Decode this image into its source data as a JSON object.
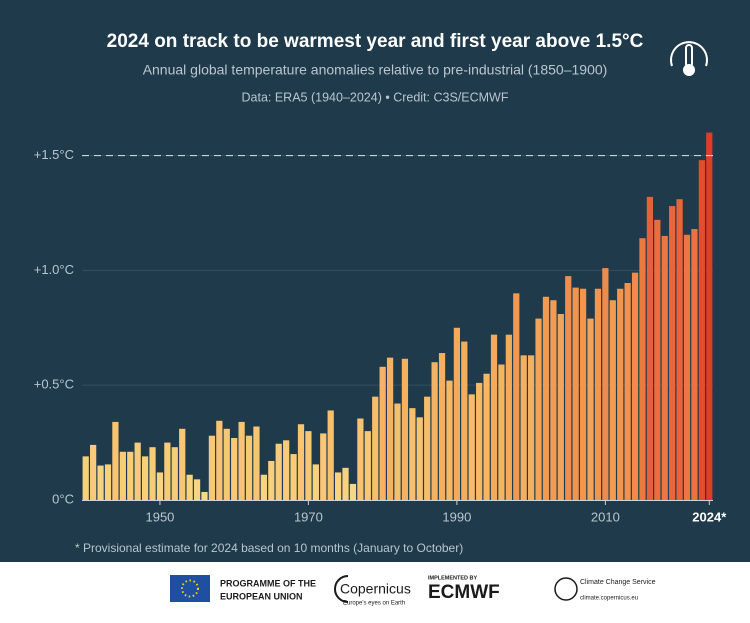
{
  "chart_data": {
    "type": "bar",
    "title": "2024 on track to be warmest year and first year above 1.5°C",
    "subtitle": "Annual global temperature anomalies relative to pre-industrial (1850–1900)",
    "source": "Data: ERA5 (1940–2024) • Credit: C3S/ECMWF",
    "footnote": "* Provisional estimate for 2024 based on 10 months (January to October)",
    "x": [
      1940,
      1941,
      1942,
      1943,
      1944,
      1945,
      1946,
      1947,
      1948,
      1949,
      1950,
      1951,
      1952,
      1953,
      1954,
      1955,
      1956,
      1957,
      1958,
      1959,
      1960,
      1961,
      1962,
      1963,
      1964,
      1965,
      1966,
      1967,
      1968,
      1969,
      1970,
      1971,
      1972,
      1973,
      1974,
      1975,
      1976,
      1977,
      1978,
      1979,
      1980,
      1981,
      1982,
      1983,
      1984,
      1985,
      1986,
      1987,
      1988,
      1989,
      1990,
      1991,
      1992,
      1993,
      1994,
      1995,
      1996,
      1997,
      1998,
      1999,
      2000,
      2001,
      2002,
      2003,
      2004,
      2005,
      2006,
      2007,
      2008,
      2009,
      2010,
      2011,
      2012,
      2013,
      2014,
      2015,
      2016,
      2017,
      2018,
      2019,
      2020,
      2021,
      2022,
      2023,
      2024
    ],
    "values": [
      0.19,
      0.24,
      0.15,
      0.155,
      0.34,
      0.21,
      0.21,
      0.25,
      0.19,
      0.23,
      0.12,
      0.25,
      0.23,
      0.31,
      0.11,
      0.09,
      0.035,
      0.28,
      0.345,
      0.31,
      0.27,
      0.34,
      0.28,
      0.32,
      0.11,
      0.17,
      0.245,
      0.26,
      0.2,
      0.33,
      0.3,
      0.155,
      0.29,
      0.39,
      0.12,
      0.14,
      0.07,
      0.355,
      0.3,
      0.45,
      0.58,
      0.62,
      0.42,
      0.615,
      0.4,
      0.36,
      0.45,
      0.6,
      0.64,
      0.52,
      0.75,
      0.69,
      0.46,
      0.51,
      0.55,
      0.72,
      0.59,
      0.72,
      0.9,
      0.63,
      0.63,
      0.79,
      0.885,
      0.87,
      0.81,
      0.975,
      0.925,
      0.92,
      0.79,
      0.92,
      1.01,
      0.87,
      0.92,
      0.945,
      0.99,
      1.14,
      1.32,
      1.22,
      1.15,
      1.28,
      1.31,
      1.155,
      1.18,
      1.48,
      1.6
    ],
    "color_scale": [
      "#f9dc86",
      "#f3a456",
      "#e03a26"
    ],
    "xlim": [
      1939.5,
      2024.5
    ],
    "xticks": [
      1950,
      1970,
      1990,
      2010,
      {
        "value": 2024,
        "label": "2024*"
      }
    ],
    "ylim": [
      0,
      1.62
    ],
    "yticks": [
      {
        "value": 0,
        "label": "0°C"
      },
      {
        "value": 0.5,
        "label": "+0.5°C"
      },
      {
        "value": 1.0,
        "label": "+1.0°C"
      },
      {
        "value": 1.5,
        "label": "+1.5°C"
      }
    ],
    "grid": true,
    "threshold": 1.5
  },
  "footer": {
    "eu_1": "PROGRAMME OF THE",
    "eu_2": "EUROPEAN UNION",
    "copernicus": "Copernicus",
    "copernicus_tag": "Europe's eyes on Earth",
    "implemented": "IMPLEMENTED BY",
    "ecmwf": "ECMWF",
    "c3s": "Climate Change Service",
    "url": "climate.copernicus.eu"
  }
}
